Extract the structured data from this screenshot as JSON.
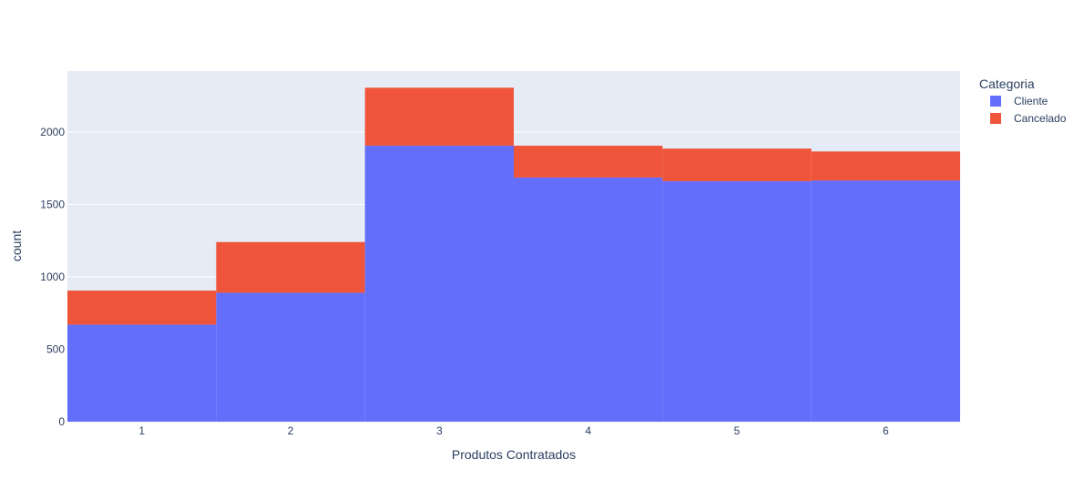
{
  "chart_data": {
    "type": "bar",
    "barmode": "stack",
    "categories": [
      "1",
      "2",
      "3",
      "4",
      "5",
      "6"
    ],
    "series": [
      {
        "name": "Cliente",
        "color": "#636efa",
        "values": [
          670,
          890,
          1905,
          1685,
          1660,
          1665
        ]
      },
      {
        "name": "Cancelado",
        "color": "#ef553b",
        "values": [
          235,
          350,
          400,
          220,
          225,
          200
        ]
      }
    ],
    "xlabel": "Produtos Contratados",
    "ylabel": "count",
    "ylim": [
      0,
      2420
    ],
    "yticks": [
      "0",
      "500",
      "1000",
      "1500",
      "2000"
    ],
    "ytick_values": [
      0,
      500,
      1000,
      1500,
      2000
    ],
    "legend": {
      "title": "Categoria",
      "placement": "right"
    },
    "grid": true,
    "plot_background": "#e5ecf6"
  }
}
